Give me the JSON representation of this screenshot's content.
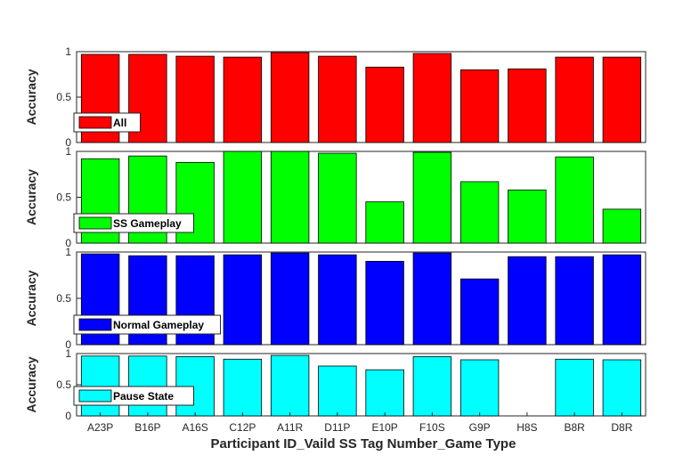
{
  "chart_data": {
    "type": "bar",
    "xlabel": "Participant ID_Vaild SS Tag Number_Game Type",
    "ylabel": "Accuracy",
    "ylim": [
      0,
      1
    ],
    "yticks": [
      "0",
      "0.5",
      "1"
    ],
    "categories": [
      "A23P",
      "B16P",
      "A16S",
      "C12P",
      "A11R",
      "D11P",
      "E10P",
      "F10S",
      "G9P",
      "H8S",
      "B8R",
      "D8R"
    ],
    "legend_position": "bottom-left",
    "grid": false,
    "series": [
      {
        "name": "All",
        "color": "#ff0000",
        "values": [
          0.97,
          0.97,
          0.95,
          0.94,
          0.99,
          0.95,
          0.83,
          0.98,
          0.8,
          0.81,
          0.94,
          0.94
        ]
      },
      {
        "name": "SS Gameplay",
        "color": "#00ff00",
        "values": [
          0.92,
          0.95,
          0.88,
          1.0,
          1.0,
          0.98,
          0.45,
          0.99,
          0.67,
          0.58,
          0.94,
          0.37
        ]
      },
      {
        "name": "Normal Gameplay",
        "color": "#0000ff",
        "values": [
          0.98,
          0.96,
          0.96,
          0.97,
          0.99,
          0.97,
          0.9,
          0.99,
          0.71,
          0.95,
          0.95,
          0.97
        ]
      },
      {
        "name": "Pause State",
        "color": "#00ffff",
        "values": [
          0.96,
          0.96,
          0.95,
          0.91,
          0.97,
          0.8,
          0.74,
          0.95,
          0.9,
          0.0,
          0.91,
          0.9
        ]
      }
    ]
  }
}
